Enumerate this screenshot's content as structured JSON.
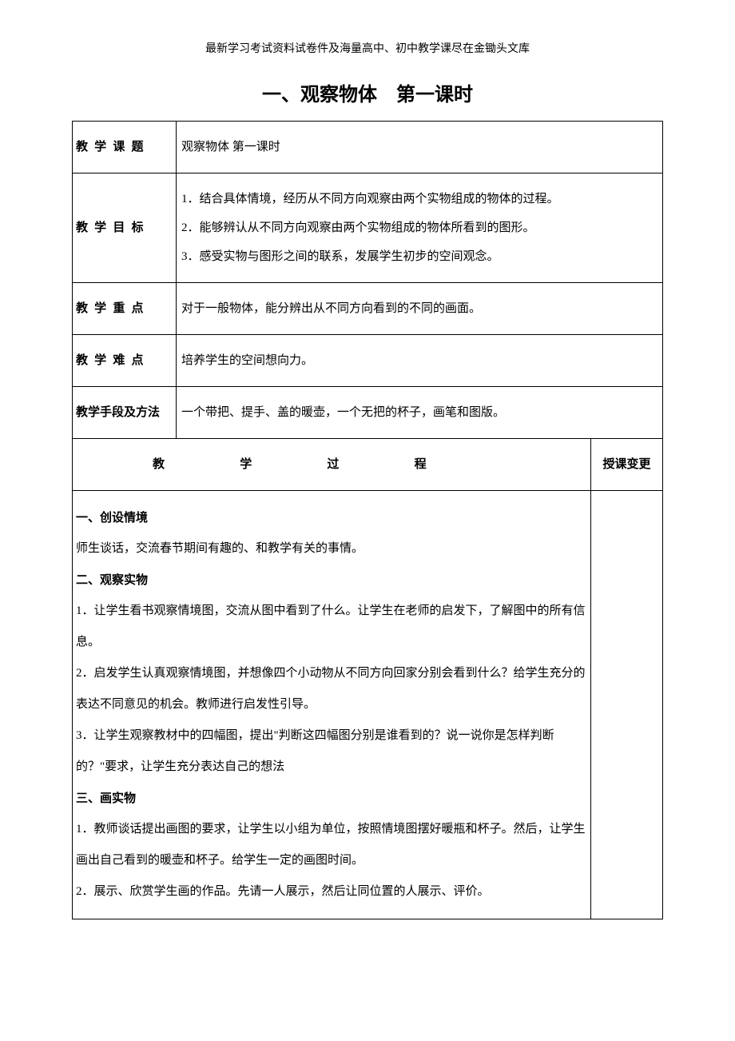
{
  "header_text": "最新学习考试资料试卷件及海量高中、初中教学课尽在金锄头文库",
  "doc_title": "一、观察物体　第一课时",
  "rows": {
    "topic_label": "教 学 课 题",
    "topic_value": "观察物体 第一课时",
    "goal_label": "教 学 目 标",
    "goal_1": "1．结合具体情境，经历从不同方向观察由两个实物组成的物体的过程。",
    "goal_2": "2．能够辨认从不同方向观察由两个实物组成的物体所看到的图形。",
    "goal_3": "3．感受实物与图形之间的联系，发展学生初步的空间观念。",
    "key_label": "教 学 重 点",
    "key_value": "对于一般物体，能分辨出从不同方向看到的不同的画面。",
    "hard_label": "教 学 难 点",
    "hard_value": "培养学生的空间想向力。",
    "method_label": "教学手段及方法",
    "method_value": "一个带把、提手、盖的暖壶，一个无把的杯子，画笔和图版。",
    "process_label_chars": [
      "教",
      "学",
      "过",
      "程"
    ],
    "change_label": "授课变更"
  },
  "body": {
    "s1_title": "一、创设情境",
    "s1_p1": "师生谈话，交流春节期间有趣的、和教学有关的事情。",
    "s2_title": "二、观察实物",
    "s2_p1": "1．让学生看书观察情境图，交流从图中看到了什么。让学生在老师的启发下，了解图中的所有信息。",
    "s2_p2": "2．启发学生认真观察情境图，并想像四个小动物从不同方向回家分别会看到什么？给学生充分的表达不同意见的机会。教师进行启发性引导。",
    "s2_p3": "3．让学生观察教材中的四幅图，提出\"判断这四幅图分别是谁看到的？说一说你是怎样判断的？\"要求，让学生充分表达自己的想法",
    "s3_title": "三、画实物",
    "s3_p1": "1．教师谈话提出画图的要求，让学生以小组为单位，按照情境图摆好暖瓶和杯子。然后，让学生画出自己看到的暖壶和杯子。给学生一定的画图时间。",
    "s3_p2": "2．展示、欣赏学生画的作品。先请一人展示，然后让同位置的人展示、评价。"
  },
  "colors": {
    "text": "#000000",
    "border": "#000000",
    "background": "#ffffff"
  },
  "fonts": {
    "label_family": "SimHei",
    "body_family": "SimSun",
    "title_size_pt": 18,
    "body_size_pt": 11
  }
}
